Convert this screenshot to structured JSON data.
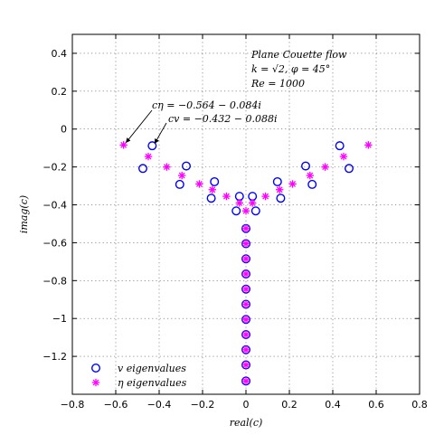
{
  "chart_data": {
    "type": "scatter",
    "title": "",
    "xlabel": "real(c)",
    "ylabel": "imag(c)",
    "xlim": [
      -0.8,
      0.8
    ],
    "ylim": [
      -1.4,
      0.5
    ],
    "xticks": [
      "−0.8",
      "−0.6",
      "−0.4",
      "−0.2",
      "0",
      "0.2",
      "0.4",
      "0.6",
      "0.8"
    ],
    "yticks": [
      "0.4",
      "0.2",
      "0",
      "−0.2",
      "−0.4",
      "−0.6",
      "−0.8",
      "−1",
      "−1.2"
    ],
    "grid": true,
    "legend": {
      "position": "bottom-left",
      "entries": [
        "v eigenvalues",
        "η eigenvalues"
      ]
    },
    "colors": {
      "v": "#0000ff",
      "eta": "#ff00ff"
    },
    "info_box": [
      "Plane Couette flow",
      "k = √2, φ = 45°",
      "Re = 1000"
    ],
    "annotations": [
      {
        "text": "cη = −0.564 − 0.084i",
        "x": -0.564,
        "y": -0.084
      },
      {
        "text": "cv = −0.432 − 0.088i",
        "x": -0.432,
        "y": -0.088
      }
    ],
    "series": [
      {
        "name": "v eigenvalues",
        "marker": "circle",
        "points": [
          [
            -0.432,
            -0.088
          ],
          [
            0.432,
            -0.088
          ],
          [
            -0.475,
            -0.208
          ],
          [
            0.475,
            -0.208
          ],
          [
            -0.275,
            -0.195
          ],
          [
            0.275,
            -0.195
          ],
          [
            -0.305,
            -0.292
          ],
          [
            0.305,
            -0.292
          ],
          [
            -0.145,
            -0.278
          ],
          [
            0.145,
            -0.278
          ],
          [
            -0.16,
            -0.365
          ],
          [
            0.16,
            -0.365
          ],
          [
            -0.03,
            -0.355
          ],
          [
            0.03,
            -0.355
          ],
          [
            -0.045,
            -0.432
          ],
          [
            0.045,
            -0.432
          ],
          [
            0,
            -0.525
          ],
          [
            0,
            -0.605
          ],
          [
            0,
            -0.685
          ],
          [
            0,
            -0.765
          ],
          [
            0,
            -0.845
          ],
          [
            0,
            -0.925
          ],
          [
            0,
            -1.005
          ],
          [
            0,
            -1.085
          ],
          [
            0,
            -1.165
          ],
          [
            0,
            -1.245
          ],
          [
            0,
            -1.33
          ]
        ]
      },
      {
        "name": "η eigenvalues",
        "marker": "asterisk",
        "points": [
          [
            -0.564,
            -0.084
          ],
          [
            0.564,
            -0.084
          ],
          [
            -0.45,
            -0.145
          ],
          [
            0.45,
            -0.145
          ],
          [
            -0.365,
            -0.2
          ],
          [
            0.365,
            -0.2
          ],
          [
            -0.295,
            -0.245
          ],
          [
            0.295,
            -0.245
          ],
          [
            -0.215,
            -0.29
          ],
          [
            0.215,
            -0.29
          ],
          [
            -0.155,
            -0.32
          ],
          [
            0.155,
            -0.32
          ],
          [
            -0.09,
            -0.355
          ],
          [
            0.09,
            -0.355
          ],
          [
            -0.03,
            -0.39
          ],
          [
            0.03,
            -0.39
          ],
          [
            0,
            -0.432
          ],
          [
            0,
            -0.525
          ],
          [
            0,
            -0.605
          ],
          [
            0,
            -0.685
          ],
          [
            0,
            -0.765
          ],
          [
            0,
            -0.845
          ],
          [
            0,
            -0.925
          ],
          [
            0,
            -1.005
          ],
          [
            0,
            -1.085
          ],
          [
            0,
            -1.165
          ],
          [
            0,
            -1.245
          ],
          [
            0,
            -1.33
          ]
        ]
      }
    ]
  }
}
